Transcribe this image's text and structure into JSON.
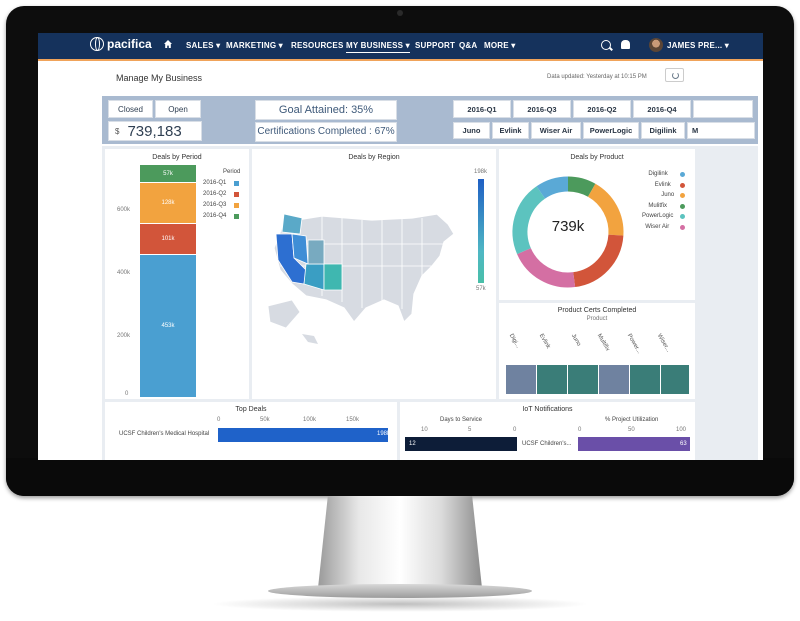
{
  "nav": {
    "logo": "pacifica",
    "items": [
      "SALES ▾",
      "MARKETING ▾",
      "RESOURCES",
      "MY BUSINESS ▾",
      "SUPPORT",
      "Q&A",
      "MORE ▾"
    ],
    "user": "JAMES PRE... ▾"
  },
  "header": {
    "title": "Manage My Business",
    "updated": "Data updated: Yesterday at 10:15 PM"
  },
  "filters": {
    "status": [
      "Closed",
      "Open"
    ],
    "currency": "$",
    "total": "739,183",
    "goal": "Goal Attained: 35%",
    "certs": "Certifications Completed : 67%",
    "periods": [
      "2016-Q1",
      "2016-Q3",
      "2016-Q2",
      "2016-Q4"
    ],
    "products": [
      "Juno",
      "Evlink",
      "Wiser Air",
      "PowerLogic",
      "Digilink",
      "M"
    ]
  },
  "deals_by_period": {
    "title": "Deals by Period",
    "legend_title": "Period",
    "legend": [
      "2016-Q1",
      "2016-Q2",
      "2016-Q3",
      "2016-Q4"
    ],
    "yticks": [
      "0",
      "200k",
      "400k",
      "600k"
    ],
    "labels": [
      "453k",
      "101k",
      "128k",
      "57k"
    ]
  },
  "deals_by_region": {
    "title": "Deals by Region",
    "scale_max": "198k",
    "scale_min": "57k"
  },
  "deals_by_product": {
    "title": "Deals by Product",
    "center": "739k",
    "legend": [
      "Digilink",
      "Evlink",
      "Juno",
      "Mulitfix",
      "PowerLogic",
      "Wiser Air"
    ]
  },
  "product_certs": {
    "title": "Product Certs Completed",
    "subtitle": "Product",
    "labels": [
      "Digi...",
      "Evlink",
      "Juno",
      "Multifix",
      "Power...",
      "Wiser..."
    ]
  },
  "top_deals": {
    "title": "Top Deals",
    "xticks": [
      "0",
      "50k",
      "100k",
      "150k"
    ],
    "row_label": "UCSF Children's Medical Hospital",
    "row_value": "198k"
  },
  "iot": {
    "title": "IoT Notifications",
    "left_title": "Days to Service",
    "left_ticks": [
      "10",
      "5",
      "0"
    ],
    "left_value": "12",
    "row_label": "UCSF Children's...",
    "right_title": "% Project Utilization",
    "right_ticks": [
      "0",
      "50",
      "100"
    ],
    "right_value": "63"
  },
  "colors": {
    "nav": "#15325c",
    "q1": "#4a9fd1",
    "q2": "#d2553a",
    "q3": "#f2a33f",
    "q4": "#4c9a5c"
  },
  "chart_data": [
    {
      "type": "bar",
      "title": "Deals by Period",
      "categories": [
        "2016-Q1",
        "2016-Q2",
        "2016-Q3",
        "2016-Q4"
      ],
      "values": [
        453,
        101,
        128,
        57
      ],
      "ylabel": "",
      "ylim": [
        0,
        740
      ]
    },
    {
      "type": "pie",
      "title": "Deals by Product",
      "categories": [
        "Digilink",
        "Evlink",
        "Juno",
        "Mulitfix",
        "PowerLogic",
        "Wiser Air"
      ],
      "values": [
        70,
        160,
        130,
        60,
        160,
        150
      ]
    },
    {
      "type": "bar",
      "title": "Top Deals",
      "categories": [
        "UCSF Children's Medical Hospital"
      ],
      "values": [
        198
      ],
      "xlim": [
        0,
        200
      ]
    }
  ]
}
